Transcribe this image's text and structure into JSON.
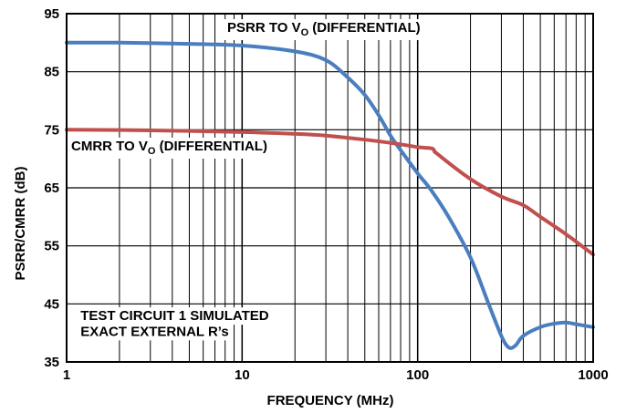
{
  "chart_data": {
    "type": "line",
    "title": "",
    "xlabel": "FREQUENCY (MHz)",
    "ylabel": "PSRR/CMRR (dB)",
    "xscale": "log",
    "xlim": [
      1,
      1000
    ],
    "ylim": [
      35,
      95
    ],
    "grid": true,
    "x_ticks": [
      1,
      10,
      100,
      1000
    ],
    "x_tick_labels": [
      "1",
      "10",
      "100",
      "1000"
    ],
    "y_ticks": [
      35,
      45,
      55,
      65,
      75,
      85,
      95
    ],
    "y_tick_labels": [
      "35",
      "45",
      "55",
      "65",
      "75",
      "85",
      "95"
    ],
    "series": [
      {
        "name": "PSRR TO VO (DIFFERENTIAL)",
        "color": "#4a7ebf",
        "x": [
          1,
          2,
          5,
          10,
          20,
          30,
          40,
          50,
          60,
          70,
          80,
          100,
          120,
          150,
          200,
          250,
          300,
          330,
          360,
          400,
          500,
          600,
          700,
          800,
          1000
        ],
        "y": [
          90.0,
          90.0,
          89.8,
          89.5,
          88.5,
          87.0,
          84.0,
          81.0,
          77.5,
          74.0,
          71.5,
          67.5,
          64.5,
          60.0,
          53.0,
          45.5,
          39.5,
          37.5,
          37.8,
          39.5,
          41.0,
          41.6,
          41.8,
          41.5,
          41.0
        ]
      },
      {
        "name": "CMRR TO VO (DIFFERENTIAL)",
        "color": "#c0504d",
        "x": [
          1,
          3,
          10,
          20,
          30,
          50,
          80,
          100,
          120,
          125,
          130,
          200,
          300,
          400,
          500,
          700,
          1000
        ],
        "y": [
          75.0,
          74.9,
          74.6,
          74.3,
          74.0,
          73.3,
          72.5,
          72.0,
          71.8,
          71.3,
          70.8,
          66.5,
          63.5,
          62.0,
          60.0,
          57.0,
          53.5
        ]
      }
    ],
    "annotations": [
      {
        "text": "TEST CIRCUIT 1 SIMULATED",
        "x": 1.2,
        "y": 42.2
      },
      {
        "text": "EXACT EXTERNAL R’s",
        "x": 1.2,
        "y": 39.5
      }
    ]
  }
}
